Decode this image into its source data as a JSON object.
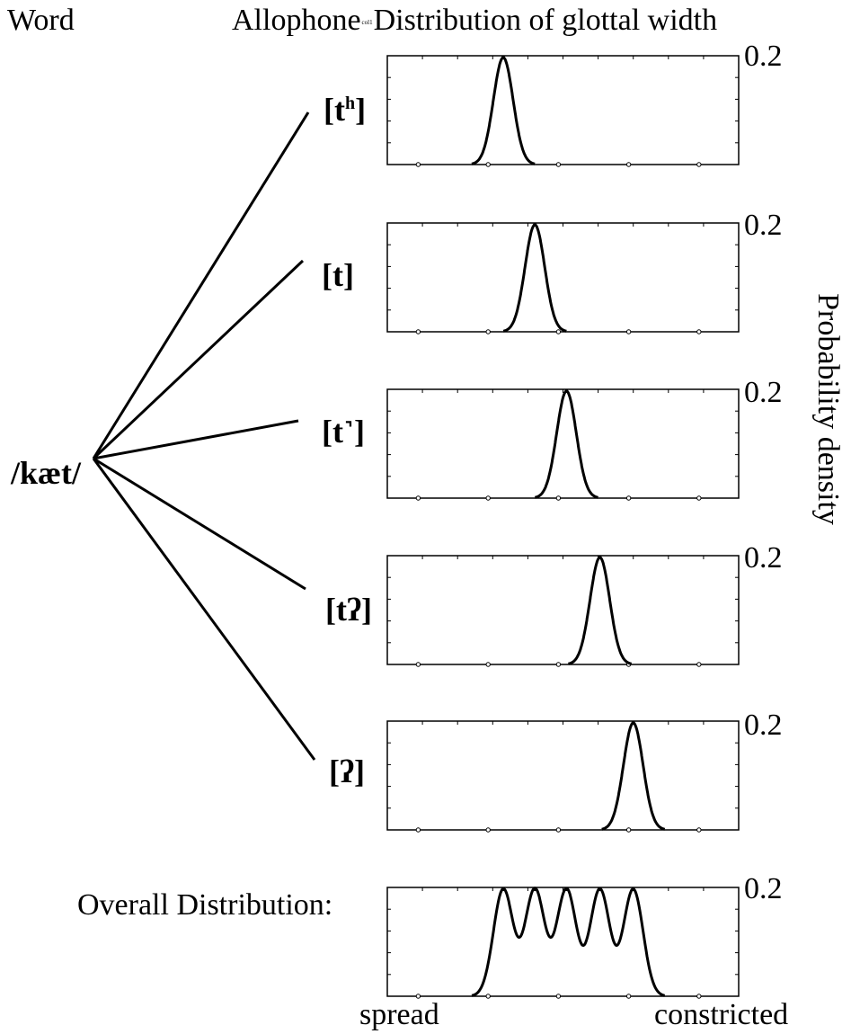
{
  "headers": {
    "word": "Word",
    "allophone": "Allophone",
    "marker": "col1",
    "distribution": "Distribution of glottal width"
  },
  "word": "/kæt/",
  "allophones": [
    {
      "base": "[t",
      "sup": "h",
      "end": "]"
    },
    {
      "base": "[t]",
      "sup": "",
      "end": ""
    },
    {
      "base": "[t",
      "sup": "",
      "end": "˺]"
    },
    {
      "base": "[tʔ]",
      "sup": "",
      "end": ""
    },
    {
      "base": "[ʔ]",
      "sup": "",
      "end": ""
    }
  ],
  "overall_label": "Overall Distribution:",
  "y_axis": {
    "label": "Probability density",
    "tick": "0.2"
  },
  "x_axis": {
    "left_label": "spread",
    "right_label": "constricted"
  },
  "chart_data": {
    "type": "line",
    "x_range": [
      "spread",
      "constricted"
    ],
    "ylabel": "Probability density",
    "ymax": 0.2,
    "series": [
      {
        "peak_fraction": 0.33,
        "peak_density": 0.2
      },
      {
        "peak_fraction": 0.42,
        "peak_density": 0.2
      },
      {
        "peak_fraction": 0.51,
        "peak_density": 0.2
      },
      {
        "peak_fraction": 0.605,
        "peak_density": 0.2
      },
      {
        "peak_fraction": 0.7,
        "peak_density": 0.2
      }
    ],
    "overall": {
      "peak_fractions": [
        0.33,
        0.42,
        0.51,
        0.605,
        0.7
      ],
      "peak_density": 0.2
    }
  }
}
